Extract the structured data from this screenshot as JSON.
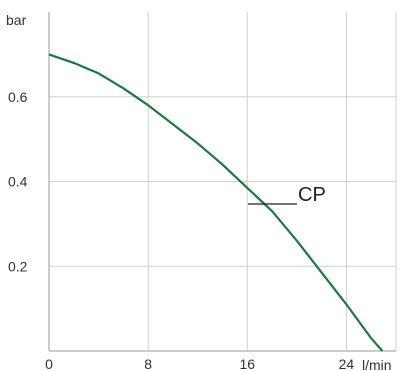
{
  "chart_data": {
    "type": "line",
    "title": "",
    "xlabel": "l/min",
    "ylabel": "bar",
    "xlim": [
      0,
      28
    ],
    "ylim": [
      0,
      0.8
    ],
    "x_ticks": [
      0,
      8,
      16,
      24
    ],
    "x_tick_labels": [
      "0",
      "8",
      "16",
      "24"
    ],
    "y_ticks": [
      0.2,
      0.4,
      0.6
    ],
    "y_tick_labels": [
      "0.2",
      "0.4",
      "0.6"
    ],
    "grid": true,
    "legend_position": "center-right",
    "series": [
      {
        "name": "CP",
        "color": "#1a7a3c",
        "x": [
          0,
          2,
          4,
          6,
          8,
          10,
          12,
          14,
          16,
          18,
          20,
          22,
          24,
          26,
          26.9
        ],
        "y": [
          0.7,
          0.68,
          0.655,
          0.62,
          0.58,
          0.535,
          0.49,
          0.44,
          0.385,
          0.33,
          0.26,
          0.185,
          0.11,
          0.03,
          0.0
        ]
      }
    ]
  }
}
